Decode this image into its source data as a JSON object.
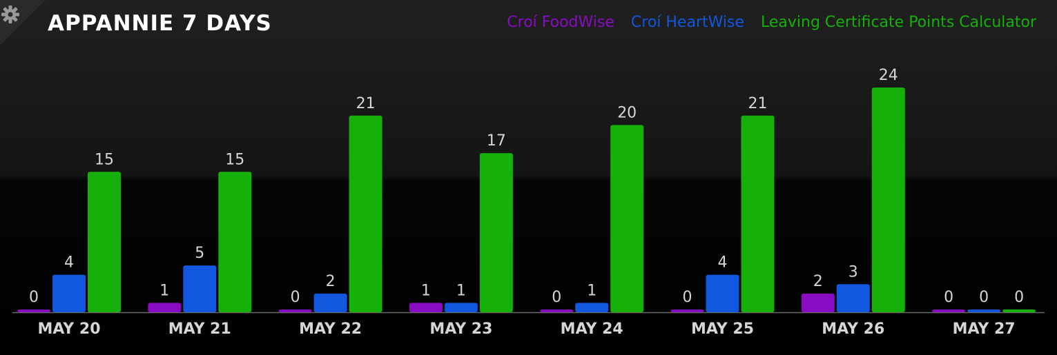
{
  "widget": {
    "title": "APPANNIE 7 DAYS",
    "settings_icon": "gear-icon"
  },
  "chart_data": {
    "type": "bar",
    "title": "APPANNIE 7 DAYS",
    "xlabel": "",
    "ylabel": "",
    "categories": [
      "MAY 20",
      "MAY 21",
      "MAY 22",
      "MAY 23",
      "MAY 24",
      "MAY 25",
      "MAY 26",
      "MAY 27"
    ],
    "series": [
      {
        "name": "Croí FoodWise",
        "color": "#8a0cc2",
        "values": [
          0,
          1,
          0,
          1,
          0,
          0,
          2,
          0
        ]
      },
      {
        "name": "Croí HeartWise",
        "color": "#1157e0",
        "values": [
          4,
          5,
          2,
          1,
          1,
          4,
          3,
          0
        ]
      },
      {
        "name": "Leaving Certificate Points Calculator",
        "color": "#15b00a",
        "values": [
          15,
          15,
          21,
          17,
          20,
          21,
          24,
          0
        ]
      }
    ],
    "ylim": [
      0,
      24
    ],
    "grid": false,
    "data_labels": true,
    "legend_position": "top-right"
  },
  "colors": {
    "background": "#000000",
    "text": "#ffffff",
    "label_text": "#d6d6d6"
  }
}
